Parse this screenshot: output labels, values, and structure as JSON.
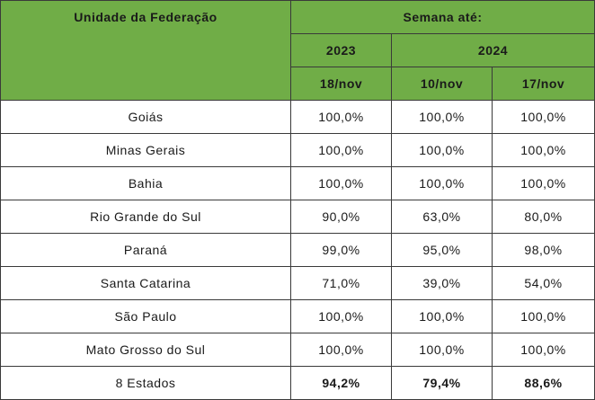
{
  "header": {
    "state_col": "Unidade da Federação",
    "week_until": "Semana até:",
    "years": [
      "2023",
      "2024"
    ],
    "dates": [
      "18/nov",
      "10/nov",
      "17/nov"
    ]
  },
  "rows": [
    {
      "state": "Goiás",
      "v2023_18nov": "100,0%",
      "v2024_10nov": "100,0%",
      "v2024_17nov": "100,0%"
    },
    {
      "state": "Minas Gerais",
      "v2023_18nov": "100,0%",
      "v2024_10nov": "100,0%",
      "v2024_17nov": "100,0%"
    },
    {
      "state": "Bahia",
      "v2023_18nov": "100,0%",
      "v2024_10nov": "100,0%",
      "v2024_17nov": "100,0%"
    },
    {
      "state": "Rio Grande do Sul",
      "v2023_18nov": "90,0%",
      "v2024_10nov": "63,0%",
      "v2024_17nov": "80,0%"
    },
    {
      "state": "Paraná",
      "v2023_18nov": "99,0%",
      "v2024_10nov": "95,0%",
      "v2024_17nov": "98,0%"
    },
    {
      "state": "Santa Catarina",
      "v2023_18nov": "71,0%",
      "v2024_10nov": "39,0%",
      "v2024_17nov": "54,0%"
    },
    {
      "state": "São Paulo",
      "v2023_18nov": "100,0%",
      "v2024_10nov": "100,0%",
      "v2024_17nov": "100,0%"
    },
    {
      "state": "Mato Grosso do Sul",
      "v2023_18nov": "100,0%",
      "v2024_10nov": "100,0%",
      "v2024_17nov": "100,0%"
    }
  ],
  "total": {
    "state": "8 Estados",
    "v2023_18nov": "94,2%",
    "v2024_10nov": "79,4%",
    "v2024_17nov": "88,6%"
  },
  "colors": {
    "header_bg": "#70ad47",
    "border": "#3a3a3a"
  }
}
